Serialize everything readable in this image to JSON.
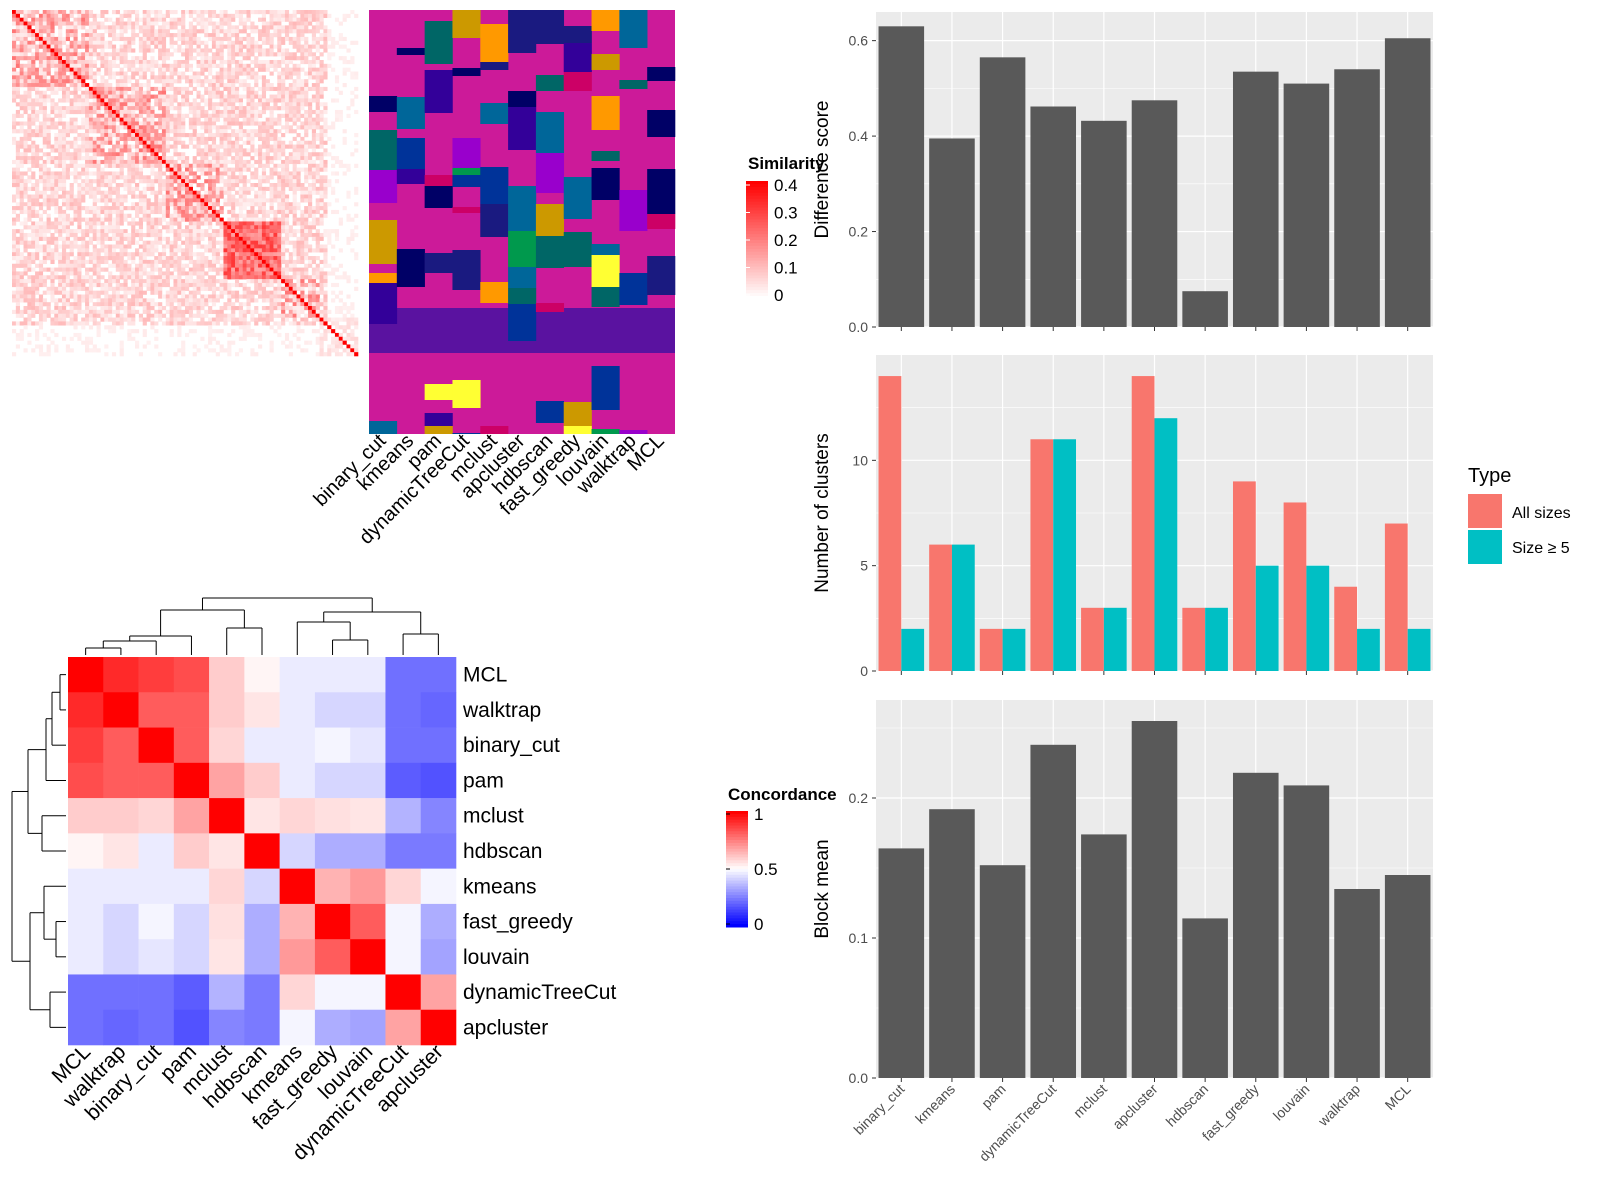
{
  "colors": {
    "panel_bg": "#ebebeb",
    "grid": "#ffffff",
    "bar": "#595959",
    "all_sizes": "#f8766d",
    "size_ge_5": "#00bfc4",
    "concord_low": "#0000ff",
    "concord_mid": "#ffffff",
    "concord_high": "#ff0000",
    "sim_low": "#ffffff",
    "sim_high": "#ff0000"
  },
  "similarity_heatmap": {
    "legend_title": "Similarity",
    "legend_ticks": [
      "0.4",
      "0.3",
      "0.2",
      "0.1",
      "0"
    ]
  },
  "membership_heatmap": {
    "columns": [
      "binary_cut",
      "kmeans",
      "pam",
      "dynamicTreeCut",
      "mclust",
      "apcluster",
      "hdbscan",
      "fast_greedy",
      "louvain",
      "walktrap",
      "MCL"
    ]
  },
  "concordance_heatmap": {
    "legend_title": "Concordance",
    "legend_ticks": [
      "1",
      "0.5",
      "0"
    ],
    "row_labels": [
      "MCL",
      "walktrap",
      "binary_cut",
      "pam",
      "mclust",
      "hdbscan",
      "kmeans",
      "fast_greedy",
      "louvain",
      "dynamicTreeCut",
      "apcluster"
    ],
    "col_labels": [
      "MCL",
      "walktrap",
      "binary_cut",
      "pam",
      "mclust",
      "hdbscan",
      "kmeans",
      "fast_greedy",
      "louvain",
      "dynamicTreeCut",
      "apcluster"
    ],
    "matrix": [
      [
        1.0,
        0.92,
        0.88,
        0.85,
        0.6,
        0.52,
        0.46,
        0.46,
        0.46,
        0.22,
        0.22
      ],
      [
        0.92,
        1.0,
        0.82,
        0.82,
        0.6,
        0.55,
        0.46,
        0.42,
        0.42,
        0.22,
        0.2
      ],
      [
        0.88,
        0.82,
        1.0,
        0.82,
        0.58,
        0.46,
        0.46,
        0.48,
        0.45,
        0.22,
        0.22
      ],
      [
        0.85,
        0.82,
        0.82,
        1.0,
        0.68,
        0.6,
        0.46,
        0.42,
        0.42,
        0.18,
        0.16
      ],
      [
        0.6,
        0.6,
        0.58,
        0.68,
        1.0,
        0.55,
        0.58,
        0.56,
        0.55,
        0.35,
        0.26
      ],
      [
        0.52,
        0.55,
        0.46,
        0.6,
        0.55,
        1.0,
        0.42,
        0.34,
        0.34,
        0.24,
        0.24
      ],
      [
        0.46,
        0.46,
        0.46,
        0.46,
        0.58,
        0.42,
        1.0,
        0.65,
        0.7,
        0.58,
        0.48
      ],
      [
        0.46,
        0.42,
        0.48,
        0.42,
        0.56,
        0.34,
        0.65,
        1.0,
        0.82,
        0.48,
        0.34
      ],
      [
        0.46,
        0.42,
        0.45,
        0.42,
        0.55,
        0.34,
        0.7,
        0.82,
        1.0,
        0.48,
        0.32
      ],
      [
        0.22,
        0.22,
        0.22,
        0.18,
        0.35,
        0.24,
        0.58,
        0.48,
        0.48,
        1.0,
        0.68
      ],
      [
        0.22,
        0.2,
        0.22,
        0.16,
        0.26,
        0.24,
        0.48,
        0.34,
        0.32,
        0.68,
        1.0
      ]
    ]
  },
  "chart_data": [
    {
      "type": "bar",
      "categories": [
        "binary_cut",
        "kmeans",
        "pam",
        "dynamicTreeCut",
        "mclust",
        "apcluster",
        "hdbscan",
        "fast_greedy",
        "louvain",
        "walktrap",
        "MCL"
      ],
      "values": [
        0.63,
        0.395,
        0.565,
        0.462,
        0.432,
        0.475,
        0.075,
        0.535,
        0.51,
        0.54,
        0.605
      ],
      "ylabel": "Difference score",
      "ylim": [
        0,
        0.66
      ],
      "yticks": [
        0.0,
        0.2,
        0.4,
        0.6
      ],
      "ytick_labels": [
        "0.0",
        "0.2",
        "0.4",
        "0.6"
      ],
      "grid": true
    },
    {
      "type": "bar",
      "categories": [
        "binary_cut",
        "kmeans",
        "pam",
        "dynamicTreeCut",
        "mclust",
        "apcluster",
        "hdbscan",
        "fast_greedy",
        "louvain",
        "walktrap",
        "MCL"
      ],
      "series": [
        {
          "name": "All sizes",
          "values": [
            14,
            6,
            2,
            11,
            3,
            14,
            3,
            9,
            8,
            4,
            7
          ]
        },
        {
          "name": "Size ≥ 5",
          "values": [
            2,
            6,
            2,
            11,
            3,
            12,
            3,
            5,
            5,
            2,
            2
          ]
        }
      ],
      "ylabel": "Number of clusters",
      "ylim": [
        0,
        15
      ],
      "yticks": [
        0,
        5,
        10
      ],
      "ytick_labels": [
        "0",
        "5",
        "10"
      ],
      "legend_title": "Type",
      "legend_position": "right",
      "grid": true
    },
    {
      "type": "bar",
      "categories": [
        "binary_cut",
        "kmeans",
        "pam",
        "dynamicTreeCut",
        "mclust",
        "apcluster",
        "hdbscan",
        "fast_greedy",
        "louvain",
        "walktrap",
        "MCL"
      ],
      "values": [
        0.164,
        0.192,
        0.152,
        0.238,
        0.174,
        0.255,
        0.114,
        0.218,
        0.209,
        0.135,
        0.145
      ],
      "ylabel": "Block mean",
      "ylim": [
        0,
        0.27
      ],
      "yticks": [
        0.0,
        0.1,
        0.2
      ],
      "ytick_labels": [
        "0.0",
        "0.1",
        "0.2"
      ],
      "grid": true
    }
  ]
}
